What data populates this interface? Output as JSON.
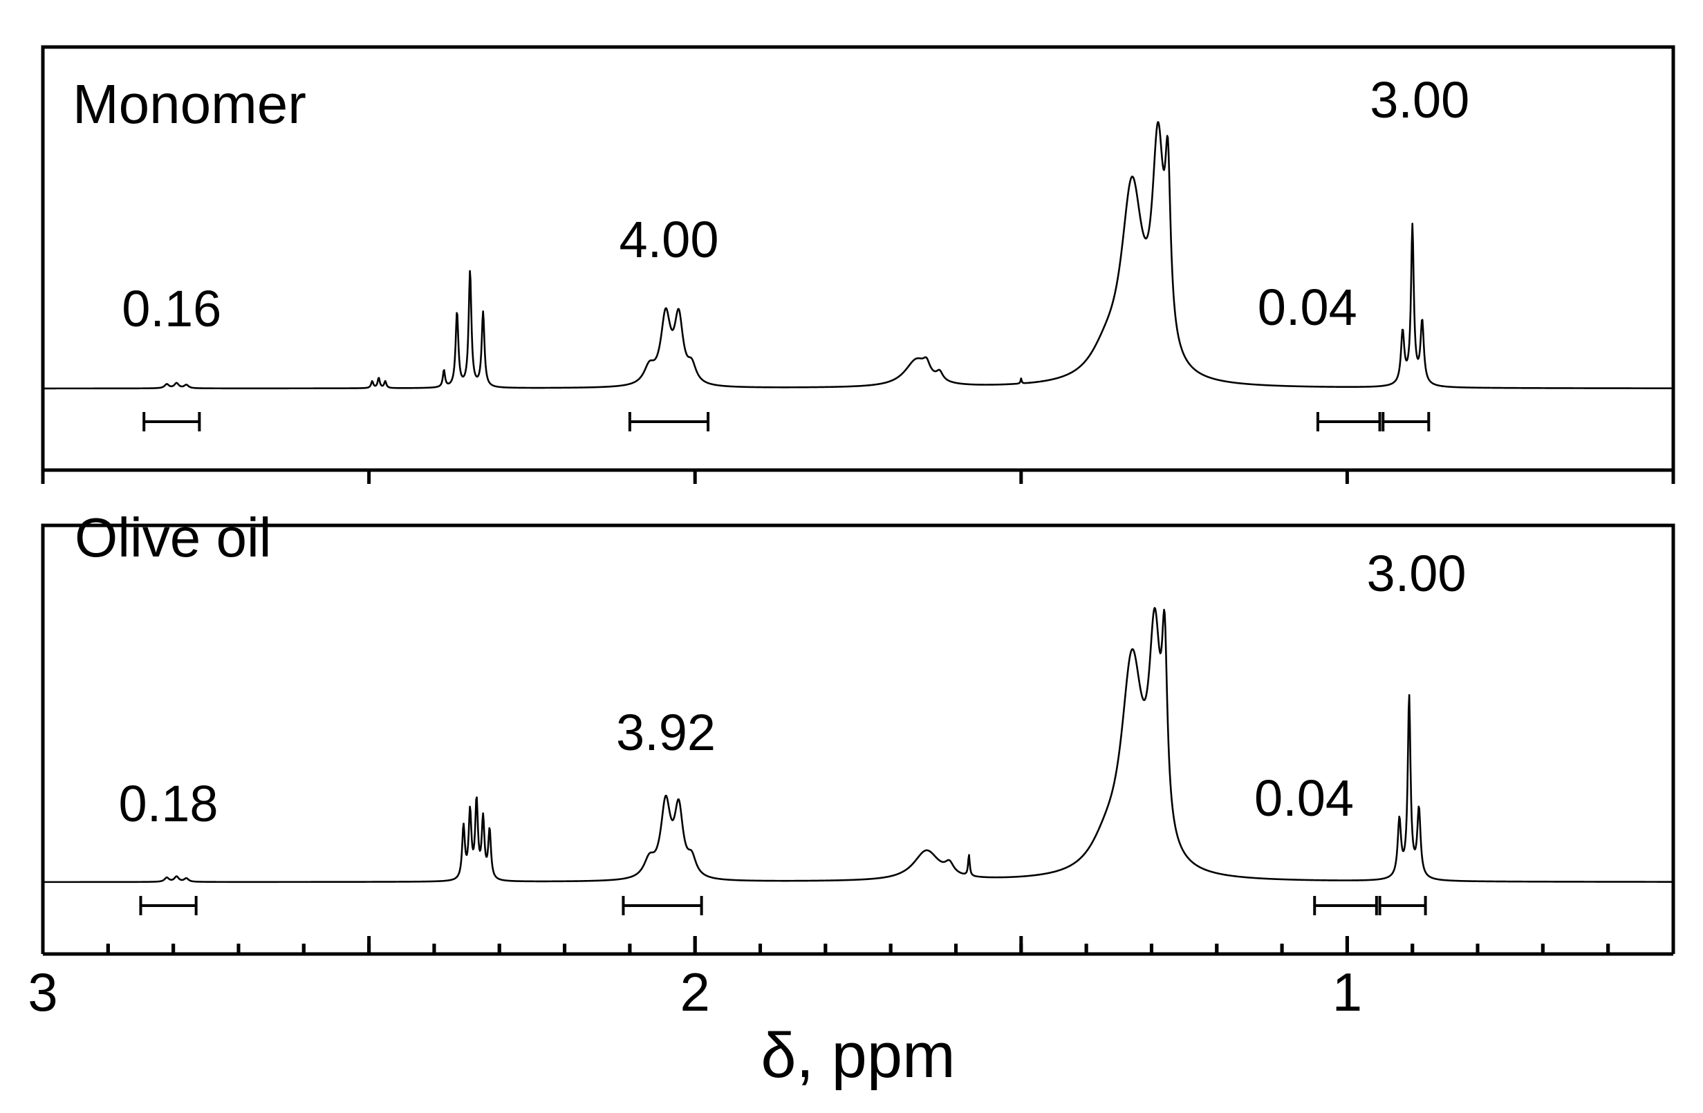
{
  "chart_data": {
    "type": "line",
    "xlabel": "δ, ppm",
    "xlim": [
      3.0,
      0.5
    ],
    "x_reversed": true,
    "major_ticks": [
      3,
      2,
      1
    ],
    "minor_tick_step": 0.1,
    "grid": false,
    "panels": [
      {
        "label": "Monomer",
        "integrals": [
          {
            "value": "0.16",
            "from": 2.845,
            "to": 2.76
          },
          {
            "value": "4.00",
            "from": 2.1,
            "to": 1.98
          },
          {
            "value": "0.04",
            "from": 1.045,
            "to": 0.95
          },
          {
            "value": "3.00",
            "from": 0.945,
            "to": 0.875
          }
        ],
        "peaks": [
          {
            "x": 2.81,
            "h": 0.012,
            "w": 0.004
          },
          {
            "x": 2.795,
            "h": 0.015,
            "w": 0.004
          },
          {
            "x": 2.78,
            "h": 0.01,
            "w": 0.004
          },
          {
            "x": 2.495,
            "h": 0.02,
            "w": 0.002
          },
          {
            "x": 2.485,
            "h": 0.03,
            "w": 0.002
          },
          {
            "x": 2.475,
            "h": 0.02,
            "w": 0.002
          },
          {
            "x": 2.385,
            "h": 0.05,
            "w": 0.002
          },
          {
            "x": 2.365,
            "h": 0.22,
            "w": 0.0025
          },
          {
            "x": 2.345,
            "h": 0.34,
            "w": 0.0025
          },
          {
            "x": 2.325,
            "h": 0.22,
            "w": 0.0025
          },
          {
            "x": 2.045,
            "h": 0.2,
            "w": 0.009
          },
          {
            "x": 2.025,
            "h": 0.19,
            "w": 0.008
          },
          {
            "x": 2.07,
            "h": 0.05,
            "w": 0.01
          },
          {
            "x": 2.005,
            "h": 0.05,
            "w": 0.008
          },
          {
            "x": 1.66,
            "h": 0.08,
            "w": 0.022
          },
          {
            "x": 1.645,
            "h": 0.03,
            "w": 0.006
          },
          {
            "x": 1.625,
            "h": 0.025,
            "w": 0.006
          },
          {
            "x": 1.5,
            "h": 0.015,
            "w": 0.001
          },
          {
            "x": 1.33,
            "h": 0.55,
            "w": 0.02
          },
          {
            "x": 1.29,
            "h": 0.62,
            "w": 0.011
          },
          {
            "x": 1.275,
            "h": 0.45,
            "w": 0.005
          },
          {
            "x": 1.37,
            "h": 0.07,
            "w": 0.03
          },
          {
            "x": 0.915,
            "h": 0.15,
            "w": 0.003
          },
          {
            "x": 0.9,
            "h": 0.45,
            "w": 0.0025
          },
          {
            "x": 0.885,
            "h": 0.18,
            "w": 0.003
          },
          {
            "x": 0.9,
            "h": 0.02,
            "w": 0.015
          }
        ]
      },
      {
        "label": "Olive oil",
        "integrals": [
          {
            "value": "0.18",
            "from": 2.85,
            "to": 2.765
          },
          {
            "value": "3.92",
            "from": 2.11,
            "to": 1.99
          },
          {
            "value": "0.04",
            "from": 1.05,
            "to": 0.955
          },
          {
            "value": "3.00",
            "from": 0.95,
            "to": 0.88
          }
        ],
        "peaks": [
          {
            "x": 2.81,
            "h": 0.012,
            "w": 0.004
          },
          {
            "x": 2.795,
            "h": 0.015,
            "w": 0.004
          },
          {
            "x": 2.78,
            "h": 0.01,
            "w": 0.004
          },
          {
            "x": 2.355,
            "h": 0.15,
            "w": 0.0025
          },
          {
            "x": 2.345,
            "h": 0.19,
            "w": 0.0025
          },
          {
            "x": 2.335,
            "h": 0.22,
            "w": 0.0025
          },
          {
            "x": 2.325,
            "h": 0.17,
            "w": 0.0025
          },
          {
            "x": 2.315,
            "h": 0.14,
            "w": 0.0025
          },
          {
            "x": 2.045,
            "h": 0.21,
            "w": 0.009
          },
          {
            "x": 2.025,
            "h": 0.19,
            "w": 0.008
          },
          {
            "x": 2.07,
            "h": 0.05,
            "w": 0.01
          },
          {
            "x": 2.005,
            "h": 0.05,
            "w": 0.008
          },
          {
            "x": 1.645,
            "h": 0.085,
            "w": 0.024
          },
          {
            "x": 1.61,
            "h": 0.03,
            "w": 0.008
          },
          {
            "x": 1.58,
            "h": 0.06,
            "w": 0.0015
          },
          {
            "x": 1.33,
            "h": 0.58,
            "w": 0.02
          },
          {
            "x": 1.295,
            "h": 0.58,
            "w": 0.011
          },
          {
            "x": 1.28,
            "h": 0.48,
            "w": 0.005
          },
          {
            "x": 1.37,
            "h": 0.07,
            "w": 0.03
          },
          {
            "x": 0.92,
            "h": 0.16,
            "w": 0.003
          },
          {
            "x": 0.905,
            "h": 0.5,
            "w": 0.0025
          },
          {
            "x": 0.89,
            "h": 0.19,
            "w": 0.003
          },
          {
            "x": 0.905,
            "h": 0.02,
            "w": 0.015
          }
        ]
      }
    ]
  }
}
